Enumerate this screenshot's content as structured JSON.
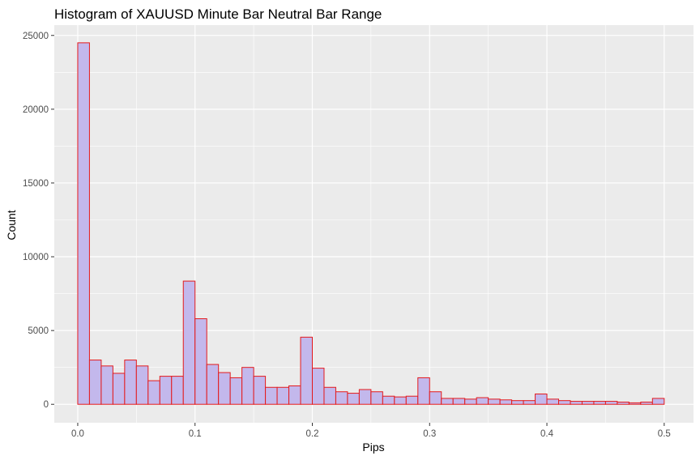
{
  "chart_data": {
    "type": "bar",
    "title": "Histogram of XAUUSD Minute Bar Neutral Bar Range",
    "xlabel": "Pips",
    "ylabel": "Count",
    "bin_width": 0.01,
    "xlim": [
      -0.02,
      0.525
    ],
    "ylim": [
      -1250,
      25700
    ],
    "x_ticks": [
      0.0,
      0.1,
      0.2,
      0.3,
      0.4,
      0.5
    ],
    "x_tick_labels": [
      "0.0",
      "0.1",
      "0.2",
      "0.3",
      "0.4",
      "0.5"
    ],
    "y_ticks": [
      0,
      5000,
      10000,
      15000,
      20000,
      25000
    ],
    "y_tick_labels": [
      "0",
      "5000",
      "10000",
      "15000",
      "20000",
      "25000"
    ],
    "grid": true,
    "colors": {
      "panel": "#ebebeb",
      "grid": "#ffffff",
      "bar_fill": "#c3b8ec",
      "bar_stroke": "#e41a1c"
    },
    "x": [
      0.005,
      0.015,
      0.025,
      0.035,
      0.045,
      0.055,
      0.065,
      0.075,
      0.085,
      0.095,
      0.105,
      0.115,
      0.125,
      0.135,
      0.145,
      0.155,
      0.165,
      0.175,
      0.185,
      0.195,
      0.205,
      0.215,
      0.225,
      0.235,
      0.245,
      0.255,
      0.265,
      0.275,
      0.285,
      0.295,
      0.305,
      0.315,
      0.325,
      0.335,
      0.345,
      0.355,
      0.365,
      0.375,
      0.385,
      0.395,
      0.405,
      0.415,
      0.425,
      0.435,
      0.445,
      0.455,
      0.465,
      0.475,
      0.485,
      0.495
    ],
    "values": [
      24500,
      3000,
      2600,
      2100,
      3000,
      2600,
      1600,
      1900,
      1900,
      8350,
      5800,
      2700,
      2150,
      1800,
      2500,
      1900,
      1150,
      1150,
      1250,
      4550,
      2450,
      1150,
      850,
      750,
      1000,
      850,
      550,
      500,
      550,
      1800,
      850,
      400,
      400,
      350,
      450,
      350,
      300,
      250,
      250,
      700,
      350,
      250,
      200,
      200,
      200,
      200,
      150,
      100,
      150,
      400
    ]
  }
}
